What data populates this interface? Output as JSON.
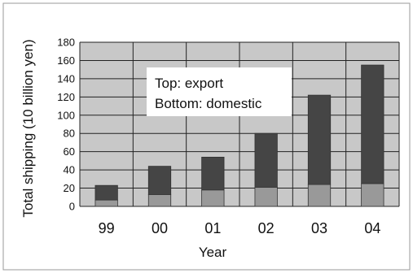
{
  "chart_data": {
    "type": "bar",
    "stacked": true,
    "categories": [
      "99",
      "00",
      "01",
      "02",
      "03",
      "04"
    ],
    "series": [
      {
        "name": "domestic",
        "values": [
          7,
          13,
          18,
          21,
          24,
          25
        ]
      },
      {
        "name": "export",
        "values": [
          16,
          31,
          36,
          59,
          98,
          130
        ]
      }
    ],
    "yticks": [
      0,
      20,
      40,
      60,
      80,
      100,
      120,
      140,
      160,
      180
    ],
    "ylim": [
      0,
      180
    ],
    "xlabel": "Year",
    "ylabel": "Total shipping (10 billion yen)",
    "annotations": [
      "Top: export",
      "Bottom: domestic"
    ],
    "grid": true,
    "colors": {
      "plot_background": "#c8c8c8",
      "export": "#454545",
      "domestic": "#999999",
      "grid": "#222222",
      "frame": "#9a9a9a"
    }
  }
}
